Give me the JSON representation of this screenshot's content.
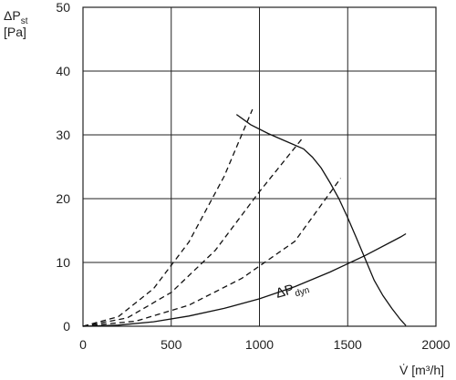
{
  "chart_data": {
    "type": "line",
    "title": "",
    "y_axis": {
      "label_main": "ΔP",
      "label_sub": "st",
      "unit": "[Pa]"
    },
    "x_axis": {
      "label": "V̇ [m³/h]"
    },
    "xlim": [
      0,
      2000
    ],
    "ylim": [
      0,
      50
    ],
    "x_ticks": [
      0,
      500,
      1000,
      1500,
      2000
    ],
    "y_ticks": [
      0,
      10,
      20,
      30,
      40,
      50
    ],
    "grid": true,
    "series": [
      {
        "style": "solid",
        "points": [
          [
            870,
            33.2
          ],
          [
            950,
            31.6
          ],
          [
            1050,
            30.2
          ],
          [
            1150,
            29.0
          ],
          [
            1250,
            27.8
          ],
          [
            1300,
            26.5
          ],
          [
            1350,
            24.8
          ],
          [
            1400,
            22.5
          ],
          [
            1450,
            20.0
          ],
          [
            1500,
            17.0
          ],
          [
            1550,
            13.8
          ],
          [
            1600,
            10.5
          ],
          [
            1650,
            7.2
          ],
          [
            1700,
            4.8
          ],
          [
            1750,
            2.8
          ],
          [
            1800,
            1.0
          ],
          [
            1830,
            0.1
          ]
        ]
      },
      {
        "style": "solid",
        "annotation": {
          "main": "ΔP",
          "sub": "dyn"
        },
        "points": [
          [
            0,
            0
          ],
          [
            200,
            0.17
          ],
          [
            400,
            0.7
          ],
          [
            600,
            1.6
          ],
          [
            800,
            2.8
          ],
          [
            1000,
            4.3
          ],
          [
            1200,
            6.2
          ],
          [
            1400,
            8.5
          ],
          [
            1600,
            11.1
          ],
          [
            1800,
            14.0
          ],
          [
            1830,
            14.5
          ]
        ]
      },
      {
        "style": "dashed",
        "points": [
          [
            0,
            0
          ],
          [
            200,
            1.5
          ],
          [
            400,
            5.9
          ],
          [
            600,
            13.2
          ],
          [
            800,
            23.5
          ],
          [
            960,
            34.0
          ]
        ]
      },
      {
        "style": "dashed",
        "points": [
          [
            0,
            0
          ],
          [
            250,
            1.3
          ],
          [
            500,
            5.3
          ],
          [
            750,
            11.9
          ],
          [
            1000,
            21.1
          ],
          [
            1250,
            29.7
          ]
        ]
      },
      {
        "style": "dashed",
        "points": [
          [
            0,
            0
          ],
          [
            300,
            0.8
          ],
          [
            600,
            3.3
          ],
          [
            900,
            7.5
          ],
          [
            1200,
            13.3
          ],
          [
            1460,
            23.2
          ]
        ]
      }
    ]
  }
}
